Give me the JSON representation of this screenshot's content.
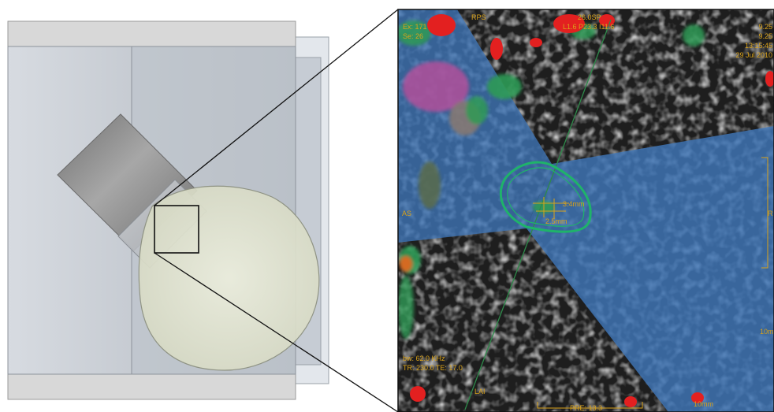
{
  "mri_overlay": {
    "top_left": [
      "Ex: 171",
      "Se: 26"
    ],
    "top_center_1": "RPS",
    "top_center_2": "26.0SP",
    "top_center_3": "L1.6 P23.3 I11.6",
    "top_right": [
      "9.25",
      "9.25",
      "13:15:45",
      "29 Jul 2010"
    ],
    "left_mid": "AS",
    "right_mid": "R",
    "bottom_left": [
      "bw: 62.0 KHz",
      "TR: 230.0 TE: 17.0"
    ],
    "bottom_lai": "LAI",
    "bottom_center": "PRE: 13.3",
    "scale_bottom": "10mm",
    "scale_right": "10m",
    "measure_1": "3.4mm",
    "measure_2": "2.5mm"
  },
  "colors": {
    "frame": "#d0d0d0",
    "cylinder": "#c9cdd4",
    "probe": "#8a8a8a",
    "sphere": "#e6e8d4",
    "mri_blue": "#3f76b8",
    "ellipse": "#1fb36a",
    "overlay_text": "#d9a21a"
  }
}
